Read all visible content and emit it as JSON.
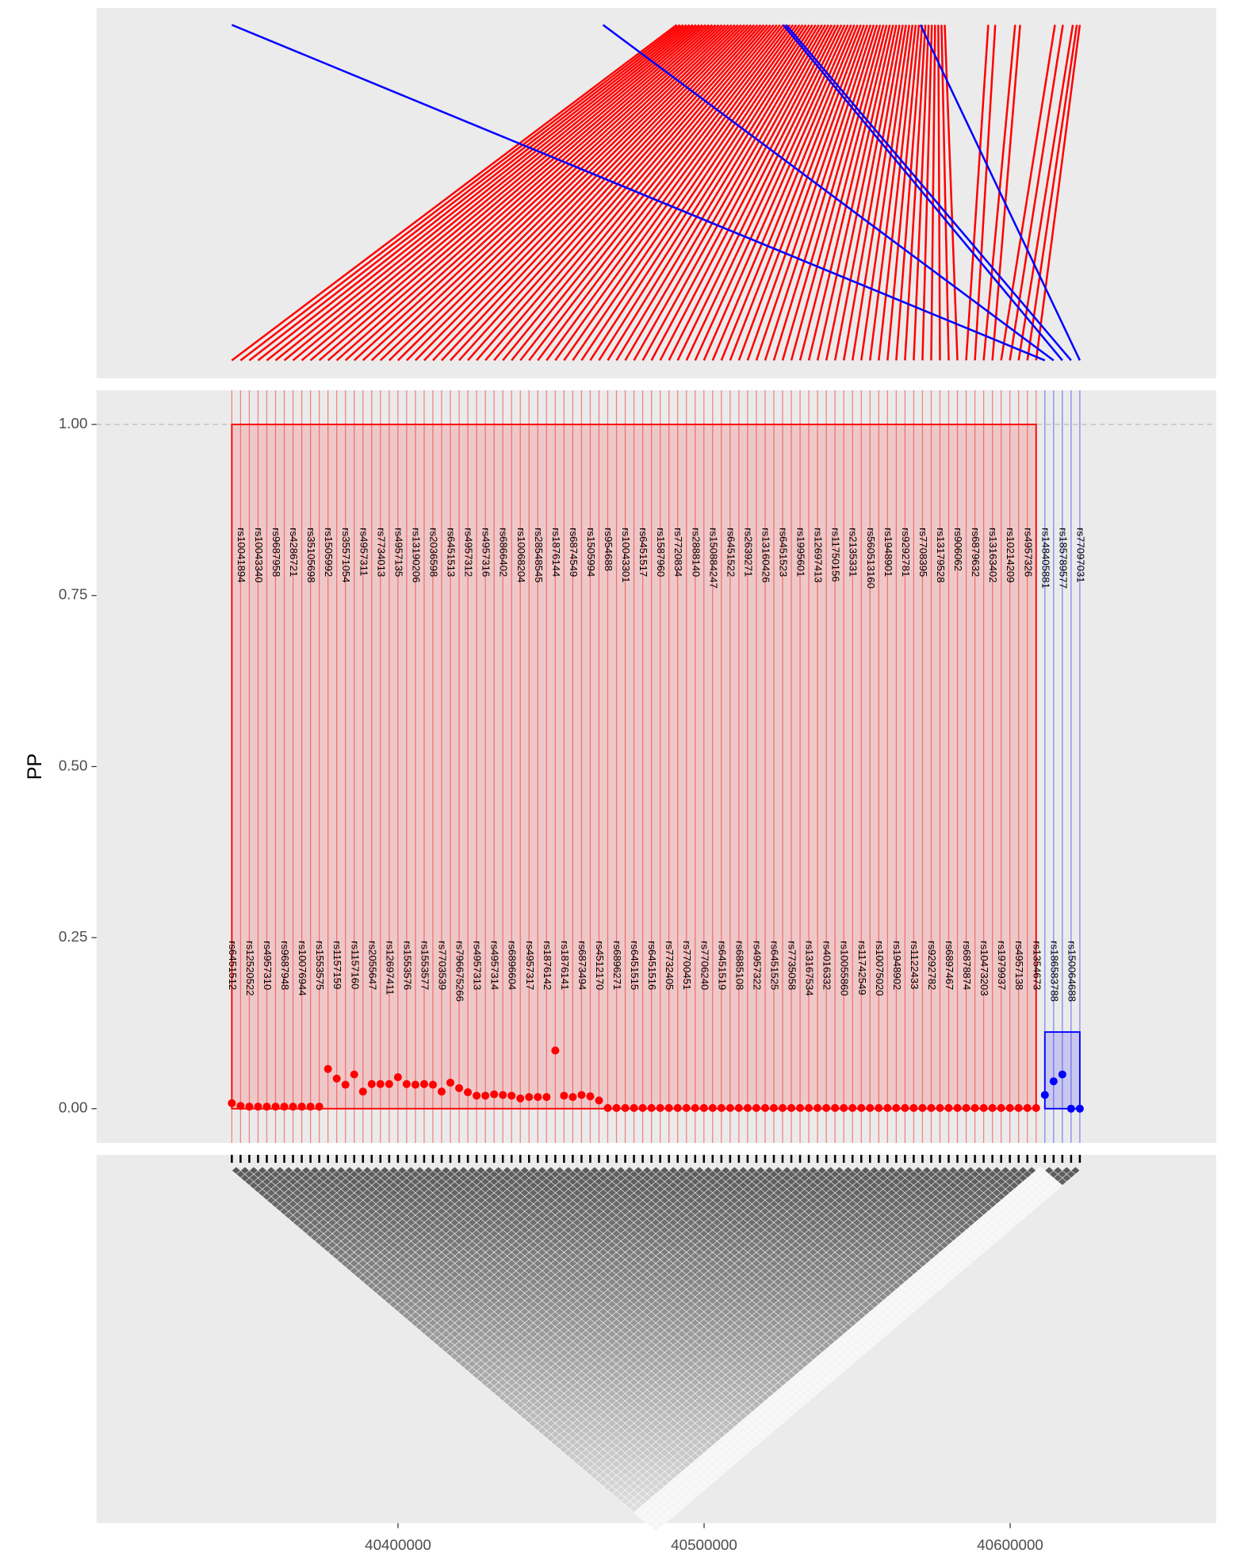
{
  "chart_data": {
    "type": "finemap",
    "ylabel": "PP",
    "ylim": [
      -0.05,
      1.05
    ],
    "yticks": [
      {
        "value": 0,
        "label": "0.00"
      },
      {
        "value": 0.25,
        "label": "0.25"
      },
      {
        "value": 0.5,
        "label": "0.50"
      },
      {
        "value": 0.75,
        "label": "0.75"
      },
      {
        "value": 1,
        "label": "1.00"
      }
    ],
    "xlim": [
      40301500,
      40667300
    ],
    "xticks": [
      40400000,
      40500000,
      40600000
    ],
    "hline": 1,
    "credible_sets": [
      {
        "color": "#ff0000",
        "height": 1,
        "rsid": [
          "rs6451512",
          "rs10041894",
          "rs12520522",
          "rs10043340",
          "rs4957310",
          "rs9687958",
          "rs9687948",
          "rs4286721",
          "rs10076944",
          "rs35105698",
          "rs1553575",
          "rs1505992",
          "rs1157159",
          "rs35571054",
          "rs1157160",
          "rs4957311",
          "rs2055647",
          "rs7734013",
          "rs12697411",
          "rs4957135",
          "rs1553576",
          "rs13190206",
          "rs1553577",
          "rs2036598",
          "rs7703539",
          "rs6451513",
          "rs796675266",
          "rs4957312",
          "rs4957313",
          "rs4957316",
          "rs4957314",
          "rs6866402",
          "rs6896604",
          "rs10068204",
          "rs4957317",
          "rs28548545",
          "rs1876142",
          "rs1876144",
          "rs1876141",
          "rs6874549",
          "rs6873494",
          "rs1505994",
          "rs4512170",
          "rs954688",
          "rs6896271",
          "rs10043301",
          "rs6451515",
          "rs6451517",
          "rs6451516",
          "rs1587960",
          "rs7732405",
          "rs7720834",
          "rs7700451",
          "rs2888140",
          "rs7706240",
          "rs150884247",
          "rs6451519",
          "rs6451522",
          "rs6885108",
          "rs2639271",
          "rs4957322",
          "rs13160426",
          "rs6451525",
          "rs6451523",
          "rs7735058",
          "rs1995601",
          "rs13167534",
          "rs12697413",
          "rs4016332",
          "rs11750156",
          "rs10055860",
          "rs2135331",
          "rs11742549",
          "rs560513160",
          "rs10075020",
          "rs1948901",
          "rs1948902",
          "rs9292781",
          "rs1122433",
          "rs7708395",
          "rs9292782",
          "rs13179528",
          "rs6897467",
          "rs906062",
          "rs6878874",
          "rs6879632",
          "rs10473203",
          "rs13163402",
          "rs1979937",
          "rs10214209",
          "rs4957138",
          "rs4957326",
          "rs1354673"
        ],
        "position": [
          40491060,
          40492115,
          40493170,
          40494225,
          40495280,
          40496335,
          40497390,
          40498445,
          40499500,
          40500555,
          40501610,
          40502665,
          40503720,
          40504775,
          40505830,
          40506885,
          40507940,
          40508995,
          40510050,
          40511105,
          40512160,
          40513215,
          40514270,
          40515325,
          40516380,
          40517435,
          40518490,
          40519545,
          40520600,
          40521655,
          40522710,
          40523765,
          40524820,
          40525875,
          40526930,
          40527985,
          40529040,
          40530095,
          40531150,
          40532205,
          40533260,
          40534315,
          40535370,
          40536425,
          40537480,
          40538535,
          40539590,
          40540645,
          40541700,
          40542755,
          40543810,
          40544865,
          40545920,
          40546975,
          40548030,
          40549085,
          40550140,
          40551195,
          40552250,
          40553305,
          40554360,
          40555415,
          40556470,
          40557525,
          40558580,
          40559635,
          40560690,
          40561745,
          40562800,
          40563855,
          40564910,
          40565965,
          40567020,
          40568075,
          40569130,
          40570185,
          40571240,
          40572295,
          40573350,
          40574405,
          40575460,
          40576515,
          40577570,
          40578625,
          40592840,
          40595120,
          40601620,
          40603250,
          40614630,
          40617230,
          40620480,
          40621780,
          40622760
        ],
        "pp": [
          0.008,
          0.004,
          0.003,
          0.003,
          0.003,
          0.003,
          0.003,
          0.003,
          0.003,
          0.003,
          0.003,
          0.058,
          0.044,
          0.035,
          0.05,
          0.025,
          0.036,
          0.036,
          0.036,
          0.046,
          0.036,
          0.035,
          0.036,
          0.035,
          0.025,
          0.038,
          0.03,
          0.024,
          0.019,
          0.019,
          0.021,
          0.02,
          0.019,
          0.015,
          0.017,
          0.017,
          0.017,
          0.085,
          0.019,
          0.017,
          0.02,
          0.018,
          0.012,
          0.001,
          0.001,
          0.001,
          0.001,
          0.001,
          0.001,
          0.001,
          0.001,
          0.001,
          0.001,
          0.001,
          0.001,
          0.001,
          0.001,
          0.001,
          0.001,
          0.001,
          0.001,
          0.001,
          0.001,
          0.001,
          0.001,
          0.001,
          0.001,
          0.001,
          0.001,
          0.001,
          0.001,
          0.001,
          0.001,
          0.001,
          0.001,
          0.001,
          0.001,
          0.001,
          0.001,
          0.001,
          0.001,
          0.001,
          0.001,
          0.001,
          0.001,
          0.001,
          0.001,
          0.001,
          0.001,
          0.001,
          0.001,
          0.001,
          0.001,
          0.001
        ]
      },
      {
        "color": "#0000ff",
        "height": 0.112,
        "rsid": [
          "rs148405881",
          "rs186583788",
          "rs185789577",
          "rs150064688",
          "rs77097031"
        ],
        "position": [
          40345700,
          40467000,
          40525850,
          40526800,
          40570700
        ],
        "pp": [
          0.02,
          0.04,
          0.05,
          0,
          0
        ]
      }
    ]
  }
}
